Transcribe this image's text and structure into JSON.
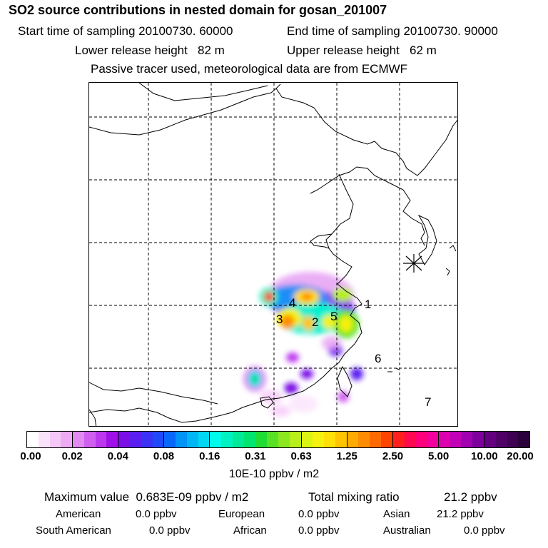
{
  "header": {
    "title": "SO2 source contributions in nested domain for gosan_201007",
    "start_time": "Start time of sampling 20100730. 60000",
    "end_time": "End time of sampling 20100730. 90000",
    "lower_height": "Lower release height   82 m",
    "upper_height": "Upper release height   62 m",
    "tracer_note": "Passive tracer used, meteorological data are from ECMWF"
  },
  "map": {
    "receptor_marker": "receptor-star",
    "regions": [
      {
        "id": "region-1",
        "label": "1"
      },
      {
        "id": "region-2",
        "label": "2"
      },
      {
        "id": "region-3",
        "label": "3"
      },
      {
        "id": "region-4",
        "label": "4"
      },
      {
        "id": "region-5",
        "label": "5"
      },
      {
        "id": "region-6",
        "label": "6"
      },
      {
        "id": "region-7",
        "label": "7"
      }
    ]
  },
  "colorbar": {
    "ticks": [
      "0.00",
      "0.02",
      "0.04",
      "0.08",
      "0.16",
      "0.31",
      "0.63",
      "1.25",
      "2.50",
      "5.00",
      "10.00",
      "20.00"
    ],
    "colors": [
      [
        "#ffffff",
        "#fbe2fb",
        "#f6c8f7",
        "#eeaaf5"
      ],
      [
        "#e08af2",
        "#cf60ef",
        "#bb38ed",
        "#a010e8"
      ],
      [
        "#7a10e6",
        "#5a1ff0",
        "#3b32f5",
        "#2049fa"
      ],
      [
        "#0a67fb",
        "#0093f8",
        "#00b7f6",
        "#00d8f3"
      ],
      [
        "#00fbea",
        "#00f2c2",
        "#00ea98",
        "#00e470"
      ],
      [
        "#20dd36",
        "#58e226",
        "#8be820",
        "#b8ee1a"
      ],
      [
        "#dcf414",
        "#f4f20e",
        "#ffe008",
        "#ffc500"
      ],
      [
        "#ffab00",
        "#ff8c00",
        "#ff6a00",
        "#ff4400"
      ],
      [
        "#ff1f1f",
        "#ff0a50",
        "#ff007a",
        "#f2009d"
      ],
      [
        "#dc00ae",
        "#c200b6",
        "#a000b0",
        "#7e009c"
      ],
      [
        "#640080",
        "#500066",
        "#3e0050",
        "#2b003a"
      ]
    ],
    "units": "10E-10 ppbv / m2"
  },
  "stats": {
    "max_value": "Maximum value  0.683E-09 ppbv / m2",
    "total_mixing": "Total mixing ratio",
    "total_value": "21.2 ppbv",
    "american_label": "American",
    "american_value": "0.0 ppbv",
    "european_label": "European",
    "european_value": "0.0 ppbv",
    "asian_label": "Asian",
    "asian_value": "21.2 ppbv",
    "south_american_label": "South American",
    "south_american_value": "0.0 ppbv",
    "african_label": "African",
    "african_value": "0.0 ppbv",
    "australian_label": "Australian",
    "australian_value": "0.0 ppbv"
  }
}
